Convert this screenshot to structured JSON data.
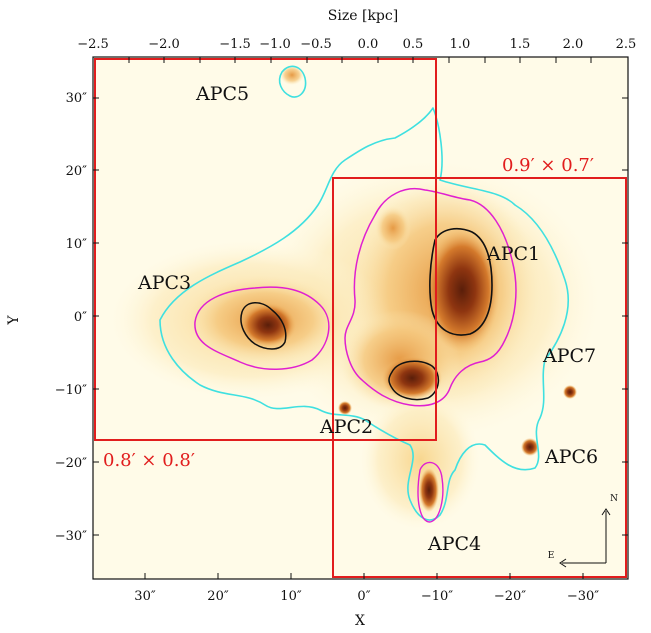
{
  "figure": {
    "top_axis_title": "Size [kpc]",
    "bottom_axis_title": "X",
    "left_axis_title": "Y",
    "top_ticks": [
      "−2.5",
      "−2.0",
      "−1.5",
      "−1.0",
      "−0.5",
      "0.0",
      "0.5",
      "1.0",
      "1.5",
      "2.0",
      "2.5"
    ],
    "bottom_ticks": [
      "30″",
      "20″",
      "10″",
      "0″",
      "−10″",
      "−20″",
      "−30″"
    ],
    "left_ticks": [
      "30″",
      "20″",
      "10″",
      "0″",
      "−10″",
      "−20″",
      "−30″"
    ],
    "regions": [
      "APC1",
      "APC2",
      "APC3",
      "APC4",
      "APC5",
      "APC6",
      "APC7"
    ],
    "fields": {
      "left": "0.8′ × 0.8′",
      "right": "0.9′ × 0.7′"
    },
    "compass": {
      "north": "N",
      "east": "E"
    },
    "colors": {
      "field_box": "#e11d1d",
      "contour_outer": "#3fe0e0",
      "contour_mid": "#e020d0",
      "contour_inner": "#111111"
    }
  }
}
